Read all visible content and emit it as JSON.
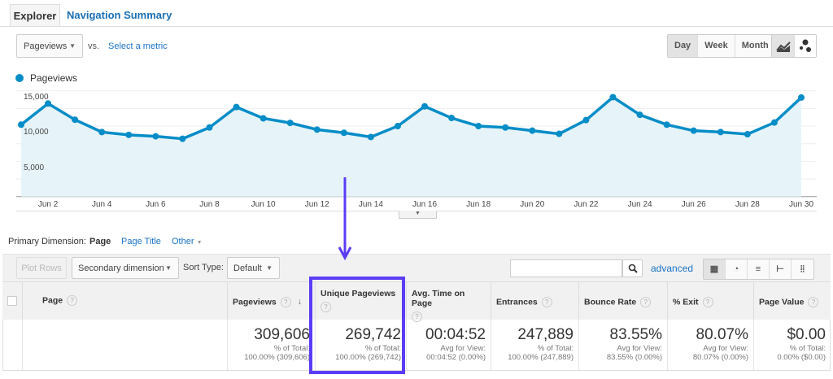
{
  "tabs": {
    "explorer": "Explorer",
    "navigation_summary": "Navigation Summary"
  },
  "metric_selector": {
    "value": "Pageviews",
    "vs": "vs.",
    "select_metric": "Select a metric"
  },
  "interval": {
    "day": "Day",
    "week": "Week",
    "month": "Month",
    "selected": "Day"
  },
  "chart_icons": [
    "line-chart-icon",
    "motion-chart-icon"
  ],
  "chart_data": {
    "type": "area",
    "legend": [
      "Pageviews"
    ],
    "series": [
      {
        "name": "Pageviews",
        "color": "#058dc7",
        "values": [
          10200,
          13200,
          10900,
          9150,
          8750,
          8550,
          8200,
          9800,
          12700,
          11100,
          10450,
          9500,
          9050,
          8450,
          10000,
          12800,
          11150,
          10000,
          9800,
          9350,
          8900,
          10850,
          14100,
          11600,
          10200,
          9350,
          9150,
          8850,
          10500,
          14050
        ]
      }
    ],
    "x_tick_labels": [
      "Jun 2",
      "Jun 4",
      "Jun 6",
      "Jun 8",
      "Jun 10",
      "Jun 12",
      "Jun 14",
      "Jun 16",
      "Jun 18",
      "Jun 20",
      "Jun 22",
      "Jun 24",
      "Jun 26",
      "Jun 28",
      "Jun 30"
    ],
    "y_tick_labels": [
      "15,000",
      "10,000",
      "5,000"
    ],
    "ylim": [
      0,
      17500
    ],
    "grid": true
  },
  "primary_dimension": {
    "label": "Primary Dimension:",
    "active": "Page",
    "page_title": "Page Title",
    "other": "Other"
  },
  "toolbar": {
    "plot_rows": "Plot Rows",
    "secondary_dimension": "Secondary dimension",
    "sort_type": "Sort Type:",
    "sort_value": "Default",
    "search_placeholder": "",
    "advanced": "advanced"
  },
  "table": {
    "headers": [
      "Page",
      "Pageviews",
      "Unique Pageviews",
      "Avg. Time on Page",
      "Entrances",
      "Bounce Rate",
      "% Exit",
      "Page Value"
    ],
    "totals": [
      {
        "value": "309,606",
        "label": "% of Total:",
        "detail": "100.00% (309,606)"
      },
      {
        "value": "269,742",
        "label": "% of Total:",
        "detail": "100.00% (269,742)"
      },
      {
        "value": "00:04:52",
        "label": "Avg for View:",
        "detail": "00:04:52 (0.00%)"
      },
      {
        "value": "247,889",
        "label": "% of Total:",
        "detail": "100.00% (247,889)"
      },
      {
        "value": "83.55%",
        "label": "Avg for View:",
        "detail": "83.55% (0.00%)"
      },
      {
        "value": "80.07%",
        "label": "Avg for View:",
        "detail": "80.07% (0.00%)"
      },
      {
        "value": "$0.00",
        "label": "% of Total:",
        "detail": "0.00% ($0.00)"
      }
    ]
  },
  "annotation": {
    "color": "#5b3df5",
    "highlighted_column": "Unique Pageviews"
  }
}
